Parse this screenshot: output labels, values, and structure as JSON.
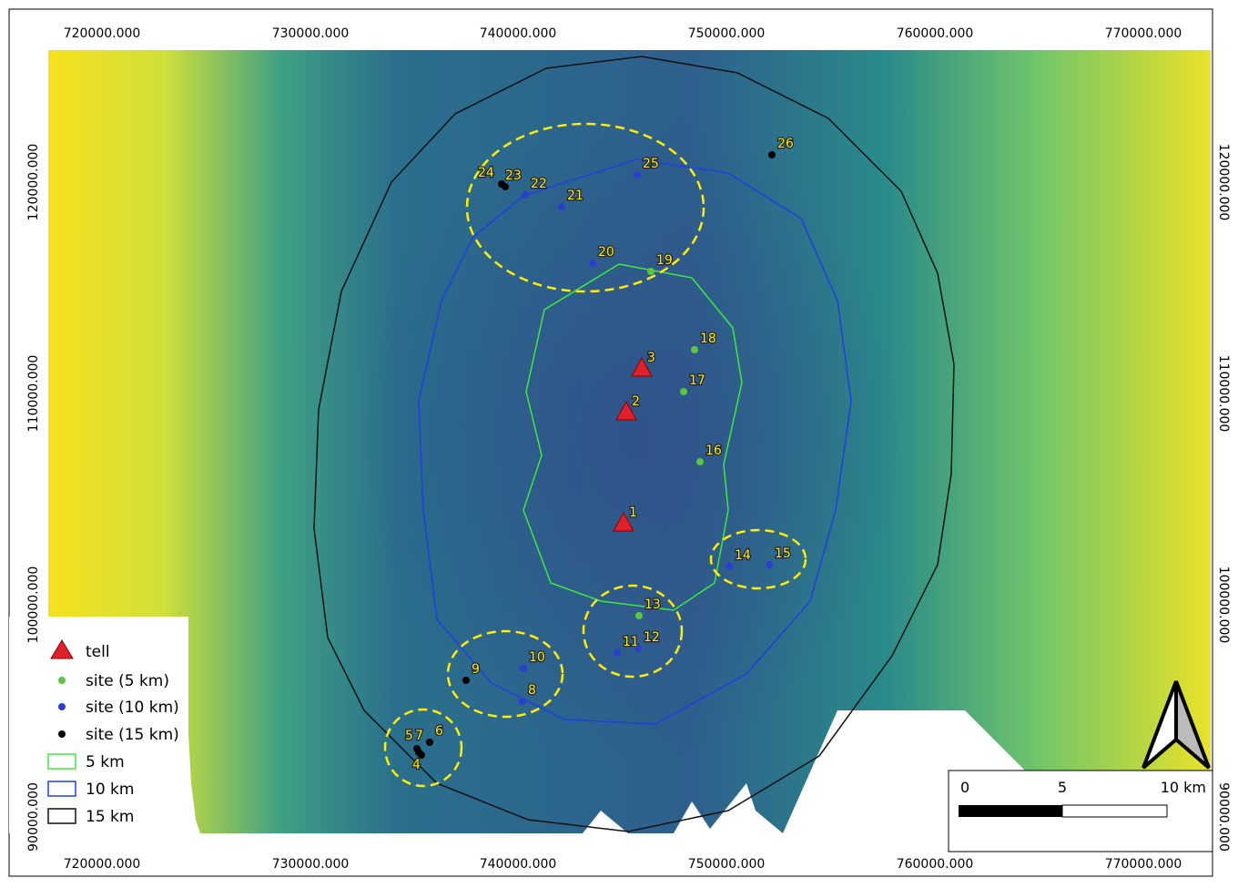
{
  "map": {
    "x_labels": [
      "720000.000",
      "730000.000",
      "740000.000",
      "750000.000",
      "760000.000",
      "770000.000"
    ],
    "y_labels": [
      "120000.000",
      "110000.000",
      "100000.000",
      "90000.000"
    ],
    "points": [
      "1",
      "2",
      "3",
      "4",
      "5",
      "6",
      "7",
      "8",
      "9",
      "10",
      "11",
      "12",
      "13",
      "14",
      "15",
      "16",
      "17",
      "18",
      "19",
      "20",
      "21",
      "22",
      "23",
      "24",
      "25",
      "26"
    ],
    "legend": [
      "tell",
      "site (5 km)",
      "site (10 km)",
      "site (15 km)",
      "5 km",
      "10 km",
      "15 km"
    ],
    "scale": [
      "0",
      "5",
      "10 km"
    ]
  }
}
